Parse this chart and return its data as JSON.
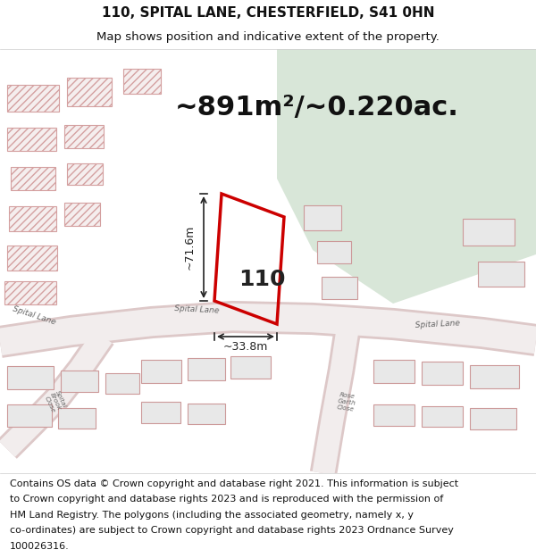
{
  "title_line1": "110, SPITAL LANE, CHESTERFIELD, S41 0HN",
  "title_line2": "Map shows position and indicative extent of the property.",
  "area_text": "~891m²/~0.220ac.",
  "label_110": "110",
  "dim_vertical": "~71.6m",
  "dim_horizontal": "~33.8m",
  "footer_lines": [
    "Contains OS data © Crown copyright and database right 2021. This information is subject",
    "to Crown copyright and database rights 2023 and is reproduced with the permission of",
    "HM Land Registry. The polygons (including the associated geometry, namely x, y",
    "co-ordinates) are subject to Crown copyright and database rights 2023 Ordnance Survey",
    "100026316."
  ],
  "bg_map_color": "#e8edea",
  "plot_outline_color": "#cc0000",
  "building_fill": "#e8e8e8",
  "building_stroke": "#cc9999",
  "hatch_fill": "#f5eeee",
  "hatch_stroke": "#d4a0a0",
  "green_area_color": "#d8e6d8",
  "road_fill": "#f2eded",
  "road_edge": "#ddc8c8",
  "title_fontsize": 11,
  "subtitle_fontsize": 9.5,
  "area_fontsize": 22,
  "label_fontsize": 18,
  "dim_fontsize": 9,
  "footer_fontsize": 8
}
